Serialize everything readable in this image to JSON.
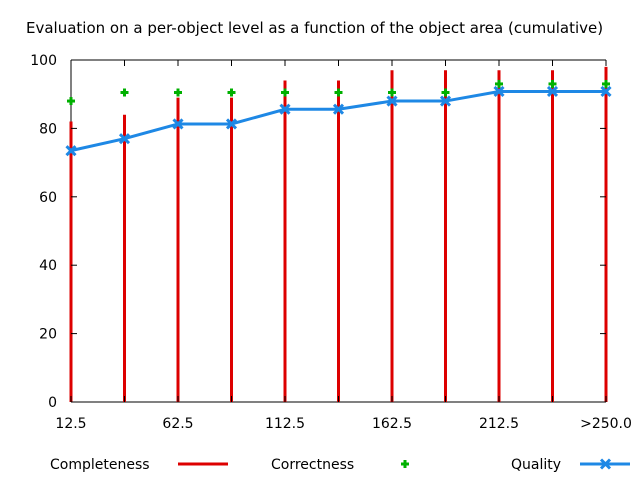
{
  "chart_data": {
    "type": "line",
    "title": "Evaluation on a per-object level as a function of the object area (cumulative)",
    "xlabel": "",
    "ylabel": "",
    "categories": [
      "12.5",
      "37.5",
      "62.5",
      "87.5",
      "112.5",
      "137.5",
      "162.5",
      "187.5",
      "212.5",
      "237.5",
      ">250.0"
    ],
    "x_tick_labels": [
      "12.5",
      "62.5",
      "112.5",
      "162.5",
      "212.5",
      ">250.0"
    ],
    "ylim": [
      0,
      100
    ],
    "y_ticks": [
      "0",
      "20",
      "40",
      "60",
      "80",
      "100"
    ],
    "grid": false,
    "legend_position": "bottom",
    "series": [
      {
        "name": "Completeness",
        "mark": "impulses",
        "color": "#dd0000",
        "values": [
          82,
          84,
          89,
          89,
          94,
          94,
          97,
          97,
          97,
          97,
          98
        ]
      },
      {
        "name": "Correctness",
        "mark": "points",
        "color": "#00b000",
        "values": [
          88,
          90.5,
          90.5,
          90.5,
          90.5,
          90.5,
          90.5,
          90.5,
          93,
          93,
          93
        ]
      },
      {
        "name": "Quality",
        "mark": "linespoints",
        "color": "#1e88e5",
        "values": [
          73.5,
          77,
          81.3,
          81.3,
          85.6,
          85.6,
          88,
          88,
          90.8,
          90.8,
          90.8
        ]
      }
    ]
  }
}
